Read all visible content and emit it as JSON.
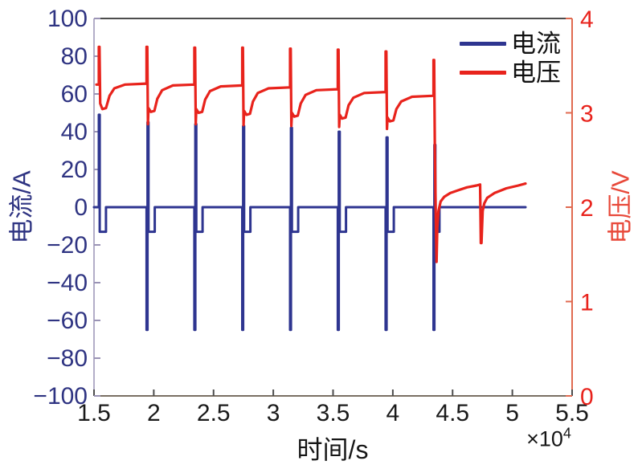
{
  "figure": {
    "xlabel": "时间/s",
    "x_multiplier_base": "×10",
    "x_multiplier_exp": "4",
    "ylabel_left": "电流/A",
    "ylabel_right": "电压/V"
  },
  "colors": {
    "current_line": "#2e3590",
    "voltage_line": "#e8231c",
    "left_tick_text": "#2f3482",
    "right_tick_text": "#e8231c",
    "x_tick_text": "#1a1a1a",
    "spine_top": "#4d4d4d",
    "spine_bottom": "#7a6f63",
    "spine_left": "#9a93b5",
    "spine_right": "#e06a50",
    "background": "#ffffff"
  },
  "chart_data": {
    "type": "line",
    "title": "",
    "xlabel": "时间/s",
    "x_unit_multiplier": "×10⁴",
    "x_axis": {
      "range": [
        1.5,
        5.5
      ],
      "tick_values": [
        1.5,
        2,
        2.5,
        3,
        3.5,
        4,
        4.5,
        5,
        5.5
      ],
      "tick_labels": [
        "1.5",
        "2",
        "2.5",
        "3",
        "3.5",
        "4",
        "4.5",
        "5",
        "5.5"
      ]
    },
    "y_left_axis": {
      "label": "电流/A",
      "range": [
        -100,
        100
      ],
      "tick_values": [
        100,
        80,
        60,
        40,
        20,
        0,
        -20,
        -40,
        -60,
        -80,
        -100
      ],
      "tick_labels": [
        "100",
        "80",
        "60",
        "40",
        "20",
        "0",
        "−20",
        "−40",
        "−60",
        "−80",
        "−100"
      ]
    },
    "y_right_axis": {
      "label": "电压/V",
      "range": [
        0,
        4
      ],
      "tick_values": [
        4,
        3,
        2,
        1,
        0
      ],
      "tick_labels": [
        "4",
        "3",
        "2",
        "1",
        "0"
      ]
    },
    "grid": false,
    "legend_position": "top-right-inside",
    "legend": [
      {
        "label": "电流",
        "color": "#2e3590"
      },
      {
        "label": "电压",
        "color": "#e8231c"
      }
    ],
    "series": [
      {
        "name": "电流",
        "axis": "left",
        "color": "#2e3590",
        "stroke_width": 3,
        "points": [
          [
            1.5,
            0
          ],
          [
            1.54,
            0
          ],
          [
            1.54,
            49
          ],
          [
            1.548,
            49
          ],
          [
            1.548,
            -13
          ],
          [
            1.6,
            -13
          ],
          [
            1.6,
            0
          ],
          [
            1.94,
            0
          ],
          [
            1.94,
            -65
          ],
          [
            1.948,
            -65
          ],
          [
            1.948,
            45
          ],
          [
            1.956,
            45
          ],
          [
            1.956,
            -13
          ],
          [
            2.008,
            -13
          ],
          [
            2.008,
            0
          ],
          [
            2.34,
            0
          ],
          [
            2.34,
            -65
          ],
          [
            2.348,
            -65
          ],
          [
            2.348,
            44
          ],
          [
            2.356,
            44
          ],
          [
            2.356,
            -13
          ],
          [
            2.408,
            -13
          ],
          [
            2.408,
            0
          ],
          [
            2.74,
            0
          ],
          [
            2.74,
            -65
          ],
          [
            2.748,
            -65
          ],
          [
            2.748,
            43
          ],
          [
            2.756,
            43
          ],
          [
            2.756,
            -13
          ],
          [
            2.808,
            -13
          ],
          [
            2.808,
            0
          ],
          [
            3.14,
            0
          ],
          [
            3.14,
            -65
          ],
          [
            3.148,
            -65
          ],
          [
            3.148,
            42
          ],
          [
            3.156,
            42
          ],
          [
            3.156,
            -13
          ],
          [
            3.208,
            -13
          ],
          [
            3.208,
            0
          ],
          [
            3.54,
            0
          ],
          [
            3.54,
            -65
          ],
          [
            3.548,
            -65
          ],
          [
            3.548,
            40
          ],
          [
            3.556,
            40
          ],
          [
            3.556,
            -13
          ],
          [
            3.608,
            -13
          ],
          [
            3.608,
            0
          ],
          [
            3.94,
            0
          ],
          [
            3.94,
            -65
          ],
          [
            3.948,
            -65
          ],
          [
            3.948,
            37
          ],
          [
            3.956,
            37
          ],
          [
            3.956,
            -13
          ],
          [
            4.008,
            -13
          ],
          [
            4.008,
            0
          ],
          [
            4.34,
            0
          ],
          [
            4.34,
            -65
          ],
          [
            4.348,
            -65
          ],
          [
            4.348,
            33
          ],
          [
            4.356,
            33
          ],
          [
            4.356,
            -13
          ],
          [
            4.39,
            -13
          ],
          [
            4.39,
            0
          ],
          [
            5.11,
            0
          ]
        ]
      },
      {
        "name": "电压",
        "axis": "right",
        "color": "#e8231c",
        "stroke_width": 3.2,
        "points": [
          [
            1.52,
            3.3
          ],
          [
            1.54,
            3.3
          ],
          [
            1.54,
            3.7
          ],
          [
            1.546,
            3.7
          ],
          [
            1.552,
            3.1
          ],
          [
            1.57,
            3.04
          ],
          [
            1.6,
            3.05
          ],
          [
            1.63,
            3.18
          ],
          [
            1.67,
            3.26
          ],
          [
            1.76,
            3.3
          ],
          [
            1.94,
            3.31
          ],
          [
            1.94,
            3.7
          ],
          [
            1.946,
            3.7
          ],
          [
            1.951,
            2.88
          ],
          [
            1.956,
            3.05
          ],
          [
            1.975,
            3.01
          ],
          [
            2.005,
            3.02
          ],
          [
            2.03,
            3.15
          ],
          [
            2.07,
            3.24
          ],
          [
            2.16,
            3.29
          ],
          [
            2.34,
            3.3
          ],
          [
            2.34,
            3.69
          ],
          [
            2.346,
            3.69
          ],
          [
            2.351,
            2.88
          ],
          [
            2.356,
            3.04
          ],
          [
            2.375,
            3.0
          ],
          [
            2.405,
            3.01
          ],
          [
            2.43,
            3.14
          ],
          [
            2.47,
            3.23
          ],
          [
            2.56,
            3.28
          ],
          [
            2.74,
            3.29
          ],
          [
            2.74,
            3.69
          ],
          [
            2.746,
            3.69
          ],
          [
            2.751,
            2.87
          ],
          [
            2.756,
            3.02
          ],
          [
            2.775,
            2.98
          ],
          [
            2.805,
            2.99
          ],
          [
            2.83,
            3.12
          ],
          [
            2.87,
            3.21
          ],
          [
            2.96,
            3.26
          ],
          [
            3.14,
            3.27
          ],
          [
            3.14,
            3.68
          ],
          [
            3.146,
            3.68
          ],
          [
            3.151,
            2.86
          ],
          [
            3.156,
            3.0
          ],
          [
            3.175,
            2.96
          ],
          [
            3.205,
            2.97
          ],
          [
            3.23,
            3.1
          ],
          [
            3.27,
            3.19
          ],
          [
            3.36,
            3.24
          ],
          [
            3.54,
            3.25
          ],
          [
            3.54,
            3.67
          ],
          [
            3.546,
            3.67
          ],
          [
            3.551,
            2.85
          ],
          [
            3.556,
            2.98
          ],
          [
            3.575,
            2.94
          ],
          [
            3.605,
            2.95
          ],
          [
            3.63,
            3.08
          ],
          [
            3.67,
            3.16
          ],
          [
            3.76,
            3.21
          ],
          [
            3.94,
            3.22
          ],
          [
            3.94,
            3.65
          ],
          [
            3.946,
            3.65
          ],
          [
            3.951,
            2.83
          ],
          [
            3.956,
            2.95
          ],
          [
            3.975,
            2.91
          ],
          [
            4.005,
            2.92
          ],
          [
            4.03,
            3.04
          ],
          [
            4.07,
            3.12
          ],
          [
            4.16,
            3.17
          ],
          [
            4.33,
            3.18
          ],
          [
            4.34,
            3.18
          ],
          [
            4.34,
            3.56
          ],
          [
            4.346,
            3.56
          ],
          [
            4.352,
            2.6
          ],
          [
            4.357,
            2.1
          ],
          [
            4.362,
            1.7
          ],
          [
            4.366,
            1.42
          ],
          [
            4.372,
            1.78
          ],
          [
            4.382,
            1.96
          ],
          [
            4.4,
            2.06
          ],
          [
            4.43,
            2.11
          ],
          [
            4.48,
            2.15
          ],
          [
            4.55,
            2.18
          ],
          [
            4.62,
            2.21
          ],
          [
            4.7,
            2.23
          ],
          [
            4.73,
            2.24
          ],
          [
            4.736,
            1.62
          ],
          [
            4.742,
            1.62
          ],
          [
            4.752,
            1.96
          ],
          [
            4.765,
            2.04
          ],
          [
            4.79,
            2.1
          ],
          [
            4.85,
            2.15
          ],
          [
            4.95,
            2.2
          ],
          [
            5.05,
            2.23
          ],
          [
            5.11,
            2.25
          ]
        ]
      }
    ]
  }
}
